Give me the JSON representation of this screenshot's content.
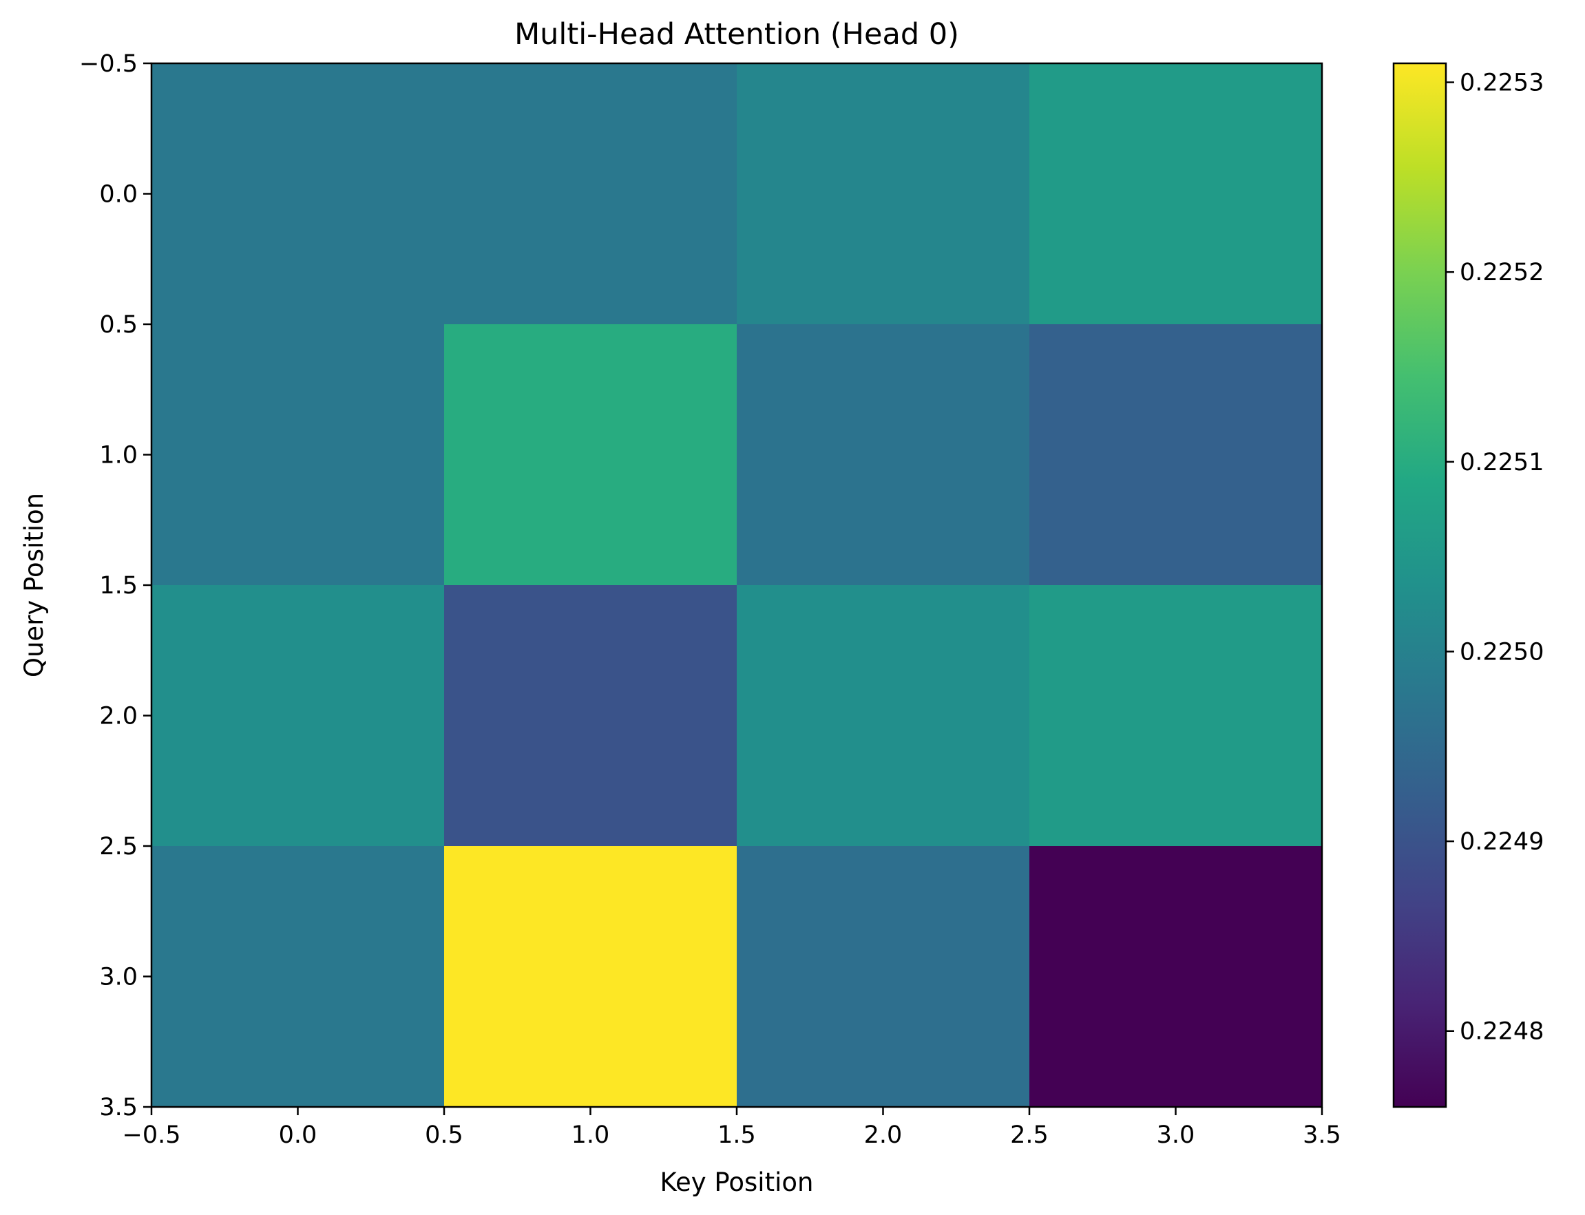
{
  "chart_data": {
    "type": "heatmap",
    "title": "Multi-Head Attention (Head 0)",
    "xlabel": "Key Position",
    "ylabel": "Query Position",
    "xlim": [
      -0.5,
      3.5
    ],
    "ylim": [
      3.5,
      -0.5
    ],
    "x_ticks": [
      "−0.5",
      "0.0",
      "0.5",
      "1.0",
      "1.5",
      "2.0",
      "2.5",
      "3.0",
      "3.5"
    ],
    "y_ticks": [
      "−0.5",
      "0.0",
      "0.5",
      "1.0",
      "1.5",
      "2.0",
      "2.5",
      "3.0",
      "3.5"
    ],
    "x_tick_values": [
      -0.5,
      0.0,
      0.5,
      1.0,
      1.5,
      2.0,
      2.5,
      3.0,
      3.5
    ],
    "y_tick_values": [
      -0.5,
      0.0,
      0.5,
      1.0,
      1.5,
      2.0,
      2.5,
      3.0,
      3.5
    ],
    "values": [
      [
        0.22498,
        0.22498,
        0.22501,
        0.22506
      ],
      [
        0.22498,
        0.2251,
        0.22497,
        0.22493
      ],
      [
        0.22503,
        0.2249,
        0.22503,
        0.22506
      ],
      [
        0.22498,
        0.22531,
        0.22496,
        0.22476
      ]
    ],
    "colormap": "viridis",
    "vmin": 0.22476,
    "vmax": 0.22531,
    "colorbar_ticks": [
      "0.2248",
      "0.2249",
      "0.2250",
      "0.2251",
      "0.2252",
      "0.2253"
    ],
    "colorbar_tick_values": [
      0.2248,
      0.2249,
      0.225,
      0.2251,
      0.2252,
      0.2253
    ],
    "grid": false
  }
}
